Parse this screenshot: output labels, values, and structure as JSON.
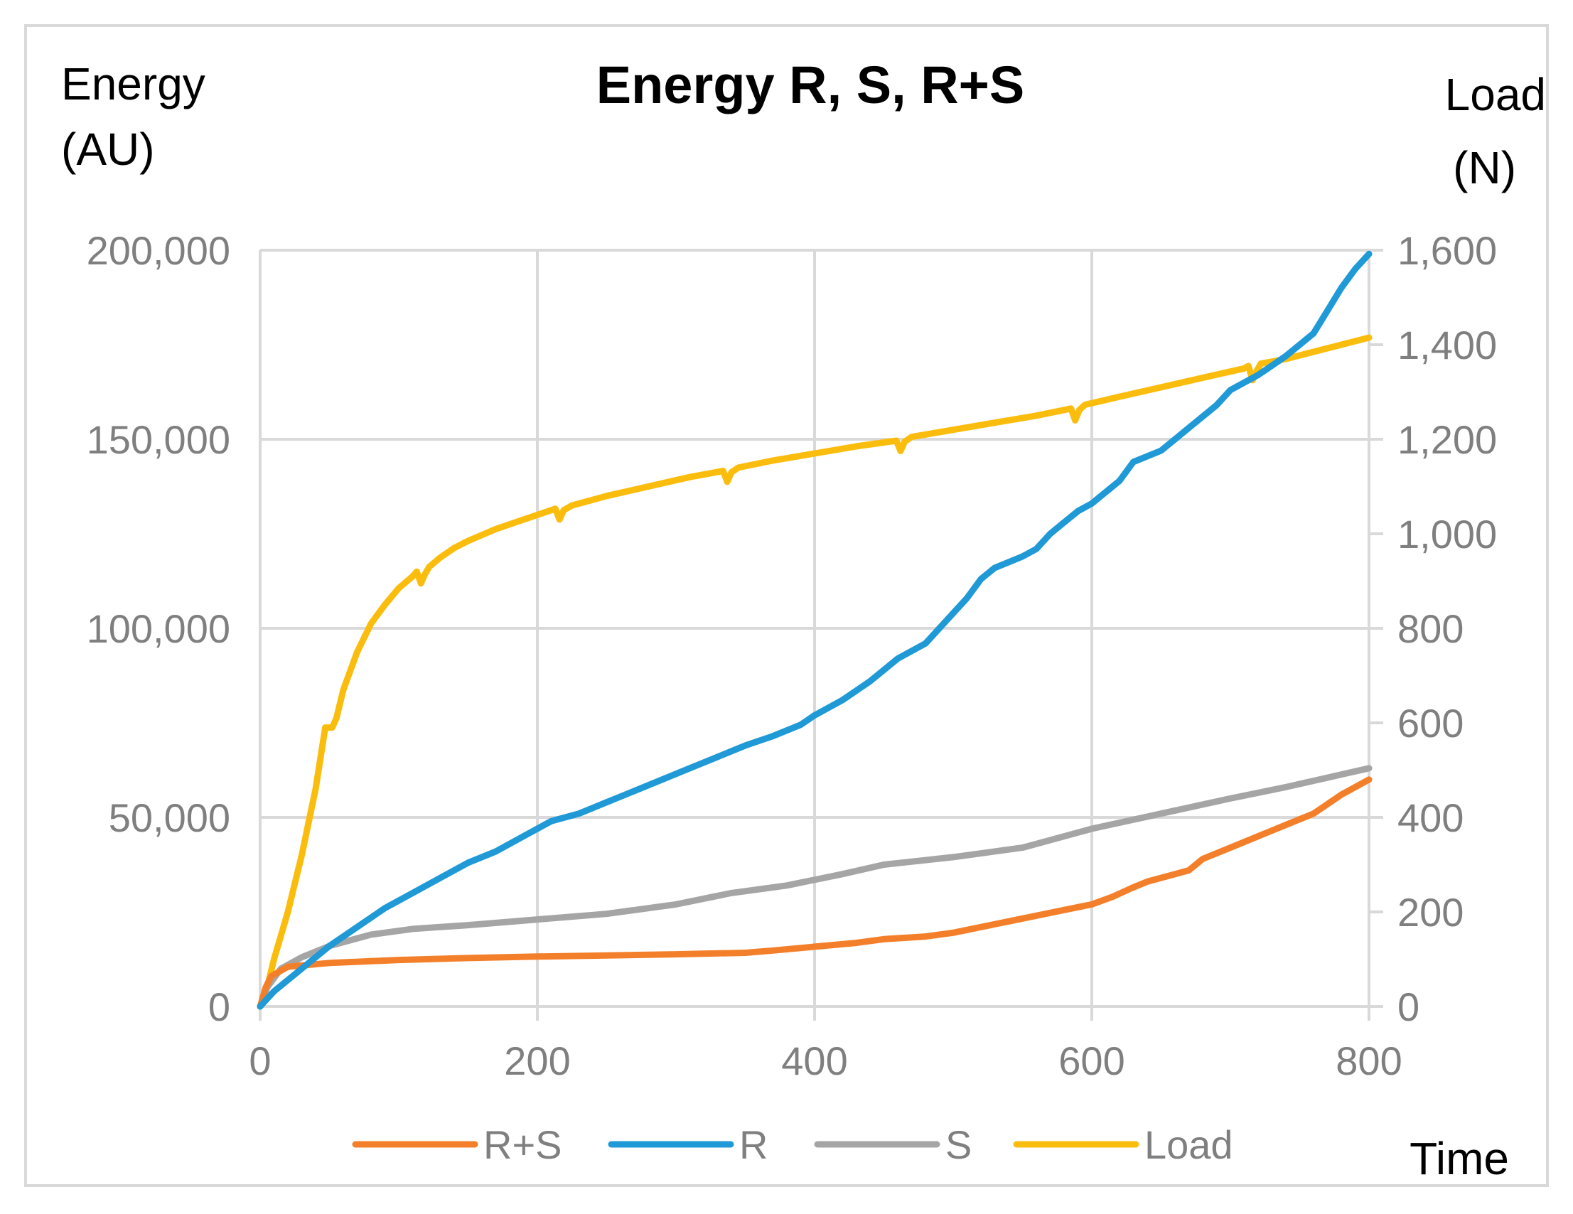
{
  "chart_data": {
    "type": "line",
    "title": "Energy R, S, R+S",
    "xlabel": "Time",
    "ylabel": [
      "Energy",
      "(AU)"
    ],
    "y2label": [
      "Load",
      "(N)"
    ],
    "xlim": [
      0,
      800
    ],
    "ylim": [
      0,
      200000
    ],
    "y2lim": [
      0,
      1600
    ],
    "xticks": [
      0,
      200,
      400,
      600,
      800
    ],
    "xtick_labels": [
      "0",
      "200",
      "400",
      "600",
      "800"
    ],
    "yticks": [
      0,
      50000,
      100000,
      150000,
      200000
    ],
    "ytick_labels": [
      "0",
      "50,000",
      "100,000",
      "150,000",
      "200,000"
    ],
    "y2ticks": [
      0,
      200,
      400,
      600,
      800,
      1000,
      1200,
      1400,
      1600
    ],
    "y2tick_labels": [
      "0",
      "200",
      "400",
      "600",
      "800",
      "1,000",
      "1,200",
      "1,400",
      "1,600"
    ],
    "grid": true,
    "legend_position": "bottom",
    "series": [
      {
        "name": "R+S",
        "color": "#f47f2a",
        "axis": "left",
        "points": [
          [
            0,
            0
          ],
          [
            4,
            5000
          ],
          [
            8,
            8000
          ],
          [
            20,
            10500
          ],
          [
            50,
            11500
          ],
          [
            100,
            12300
          ],
          [
            150,
            12800
          ],
          [
            200,
            13200
          ],
          [
            250,
            13500
          ],
          [
            300,
            13800
          ],
          [
            350,
            14200
          ],
          [
            370,
            14800
          ],
          [
            400,
            15800
          ],
          [
            430,
            16800
          ],
          [
            450,
            17800
          ],
          [
            480,
            18500
          ],
          [
            500,
            19500
          ],
          [
            520,
            21000
          ],
          [
            540,
            22500
          ],
          [
            560,
            24000
          ],
          [
            580,
            25500
          ],
          [
            600,
            27000
          ],
          [
            615,
            29000
          ],
          [
            630,
            31500
          ],
          [
            640,
            33000
          ],
          [
            660,
            35000
          ],
          [
            670,
            36000
          ],
          [
            680,
            39000
          ],
          [
            700,
            42000
          ],
          [
            720,
            45000
          ],
          [
            740,
            48000
          ],
          [
            760,
            51000
          ],
          [
            780,
            56000
          ],
          [
            800,
            60000
          ]
        ]
      },
      {
        "name": "R",
        "color": "#1f9ad6",
        "axis": "left",
        "points": [
          [
            0,
            0
          ],
          [
            10,
            4000
          ],
          [
            30,
            10000
          ],
          [
            50,
            16000
          ],
          [
            70,
            21000
          ],
          [
            90,
            26000
          ],
          [
            110,
            30000
          ],
          [
            130,
            34000
          ],
          [
            150,
            38000
          ],
          [
            170,
            41000
          ],
          [
            190,
            45000
          ],
          [
            210,
            49000
          ],
          [
            230,
            51000
          ],
          [
            250,
            54000
          ],
          [
            270,
            57000
          ],
          [
            290,
            60000
          ],
          [
            310,
            63000
          ],
          [
            330,
            66000
          ],
          [
            350,
            69000
          ],
          [
            370,
            71500
          ],
          [
            390,
            74500
          ],
          [
            400,
            77000
          ],
          [
            420,
            81000
          ],
          [
            440,
            86000
          ],
          [
            460,
            92000
          ],
          [
            480,
            96000
          ],
          [
            500,
            104000
          ],
          [
            510,
            108000
          ],
          [
            520,
            113000
          ],
          [
            530,
            116000
          ],
          [
            550,
            119000
          ],
          [
            560,
            121000
          ],
          [
            570,
            125000
          ],
          [
            580,
            128000
          ],
          [
            590,
            131000
          ],
          [
            600,
            133000
          ],
          [
            620,
            139000
          ],
          [
            630,
            144000
          ],
          [
            650,
            147000
          ],
          [
            670,
            153000
          ],
          [
            690,
            159000
          ],
          [
            700,
            163000
          ],
          [
            720,
            167000
          ],
          [
            740,
            172000
          ],
          [
            760,
            178000
          ],
          [
            770,
            184000
          ],
          [
            780,
            190000
          ],
          [
            790,
            195000
          ],
          [
            800,
            199000
          ]
        ]
      },
      {
        "name": "S",
        "color": "#a5a5a5",
        "axis": "left",
        "points": [
          [
            0,
            0
          ],
          [
            5,
            5000
          ],
          [
            15,
            10000
          ],
          [
            30,
            13000
          ],
          [
            50,
            16000
          ],
          [
            80,
            19000
          ],
          [
            110,
            20500
          ],
          [
            150,
            21500
          ],
          [
            200,
            23000
          ],
          [
            250,
            24500
          ],
          [
            300,
            27000
          ],
          [
            340,
            30000
          ],
          [
            380,
            32000
          ],
          [
            420,
            35000
          ],
          [
            450,
            37500
          ],
          [
            500,
            39500
          ],
          [
            550,
            42000
          ],
          [
            600,
            47000
          ],
          [
            650,
            51000
          ],
          [
            700,
            55000
          ],
          [
            740,
            58000
          ],
          [
            770,
            60500
          ],
          [
            800,
            63000
          ]
        ]
      },
      {
        "name": "Load",
        "color": "#fbbd0d",
        "axis": "right",
        "points": [
          [
            0,
            0
          ],
          [
            5,
            40
          ],
          [
            10,
            100
          ],
          [
            20,
            200
          ],
          [
            30,
            320
          ],
          [
            40,
            460
          ],
          [
            47,
            590
          ],
          [
            52,
            590
          ],
          [
            55,
            610
          ],
          [
            60,
            670
          ],
          [
            70,
            750
          ],
          [
            80,
            810
          ],
          [
            90,
            850
          ],
          [
            100,
            885
          ],
          [
            110,
            910
          ],
          [
            113,
            920
          ],
          [
            116,
            895
          ],
          [
            119,
            915
          ],
          [
            122,
            930
          ],
          [
            130,
            950
          ],
          [
            140,
            970
          ],
          [
            150,
            985
          ],
          [
            170,
            1010
          ],
          [
            190,
            1030
          ],
          [
            210,
            1050
          ],
          [
            213,
            1053
          ],
          [
            216,
            1030
          ],
          [
            219,
            1050
          ],
          [
            225,
            1060
          ],
          [
            250,
            1080
          ],
          [
            280,
            1100
          ],
          [
            310,
            1120
          ],
          [
            334,
            1133
          ],
          [
            337,
            1110
          ],
          [
            340,
            1130
          ],
          [
            345,
            1140
          ],
          [
            370,
            1155
          ],
          [
            400,
            1170
          ],
          [
            430,
            1185
          ],
          [
            459,
            1197
          ],
          [
            462,
            1175
          ],
          [
            465,
            1195
          ],
          [
            470,
            1205
          ],
          [
            500,
            1220
          ],
          [
            530,
            1235
          ],
          [
            560,
            1250
          ],
          [
            585,
            1265
          ],
          [
            588,
            1240
          ],
          [
            591,
            1262
          ],
          [
            595,
            1273
          ],
          [
            620,
            1290
          ],
          [
            650,
            1310
          ],
          [
            680,
            1330
          ],
          [
            710,
            1350
          ],
          [
            713,
            1355
          ],
          [
            716,
            1325
          ],
          [
            719,
            1345
          ],
          [
            722,
            1360
          ],
          [
            740,
            1370
          ],
          [
            760,
            1385
          ],
          [
            780,
            1400
          ],
          [
            800,
            1415
          ]
        ]
      }
    ]
  }
}
